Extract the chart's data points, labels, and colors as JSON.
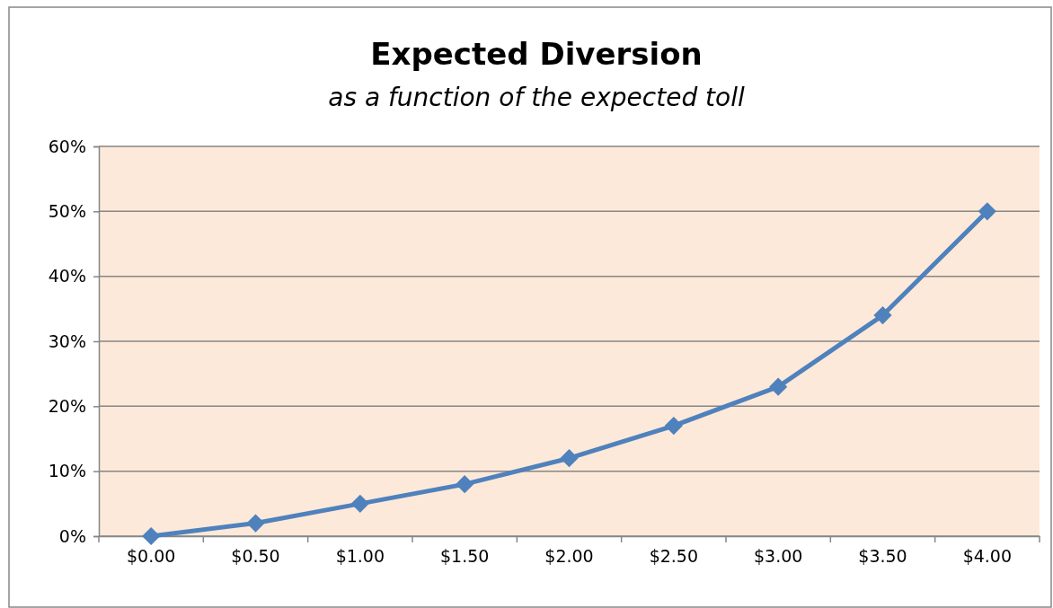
{
  "chart_data": {
    "type": "line",
    "title": "Expected Diversion",
    "subtitle": "as a function of the expected toll",
    "categories": [
      "$0.00",
      "$0.50",
      "$1.00",
      "$1.50",
      "$2.00",
      "$2.50",
      "$3.00",
      "$3.50",
      "$4.00"
    ],
    "series": [
      {
        "color": "#4f81bd",
        "values": [
          0,
          2,
          5,
          8,
          12,
          17,
          23,
          34,
          50
        ]
      }
    ],
    "ylim": [
      0,
      60
    ],
    "yticks": [
      {
        "value": 0,
        "label": "0%"
      },
      {
        "value": 10,
        "label": "10%"
      },
      {
        "value": 20,
        "label": "20%"
      },
      {
        "value": 30,
        "label": "30%"
      },
      {
        "value": 40,
        "label": "40%"
      },
      {
        "value": 50,
        "label": "50%"
      },
      {
        "value": 60,
        "label": "60%"
      }
    ],
    "grid": "y",
    "marker": "diamond",
    "line_style": "solid"
  }
}
